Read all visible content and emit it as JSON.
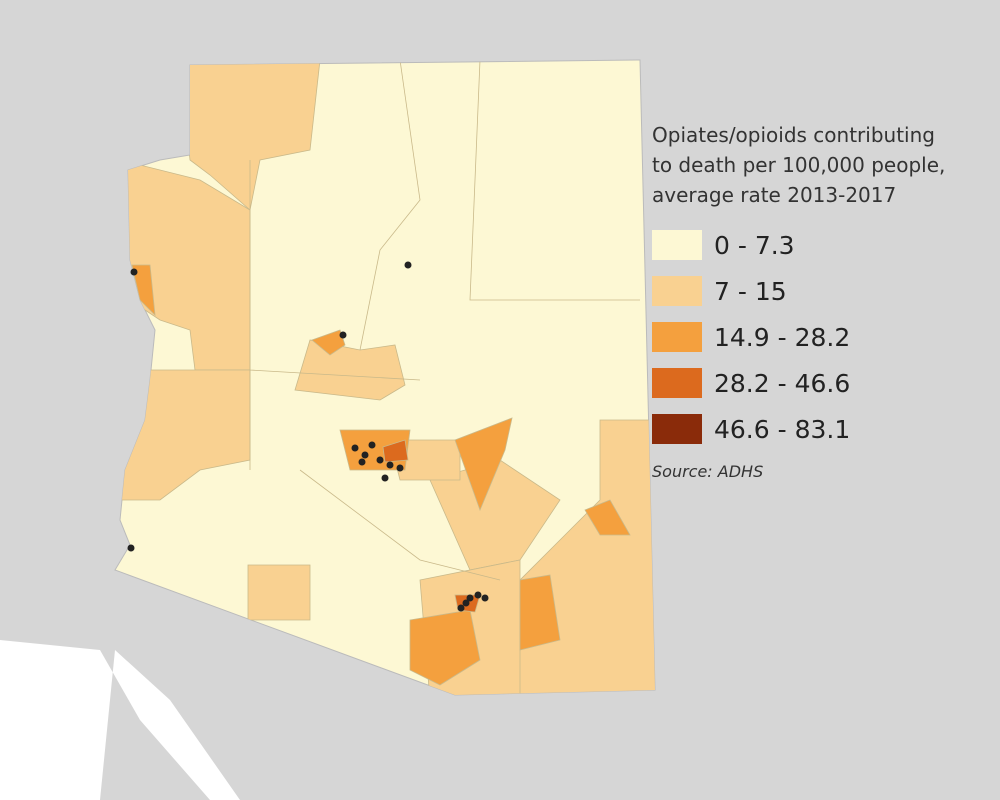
{
  "legend": {
    "title_lines": [
      "Opiates/opioids contributing",
      "to death per 100,000 people,",
      "average rate 2013-2017"
    ],
    "items": [
      {
        "label": "0 - 7.3",
        "color": "#fdf8d4"
      },
      {
        "label": "7 - 15",
        "color": "#f9d191"
      },
      {
        "label": "14.9 - 28.2",
        "color": "#f4a03e"
      },
      {
        "label": "28.2 - 46.6",
        "color": "#dc6a1e"
      },
      {
        "label": "46.6 - 83.1",
        "color": "#8a2b0a"
      }
    ],
    "source": "Source: ADHS"
  }
}
